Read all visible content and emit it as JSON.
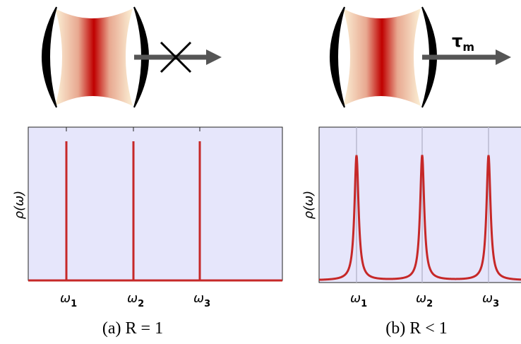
{
  "panels": [
    {
      "arrow_label": null,
      "y_label": "ρ(ω)",
      "x_labels": [
        {
          "symbol": "ω",
          "subscript": "1"
        },
        {
          "symbol": "ω",
          "subscript": "2"
        },
        {
          "symbol": "ω",
          "subscript": "3"
        }
      ],
      "caption": "(a) R = 1"
    },
    {
      "arrow_label": {
        "symbol": "τ",
        "subscript": "m"
      },
      "y_label": "ρ(ω)",
      "x_labels": [
        {
          "symbol": "ω",
          "subscript": "1"
        },
        {
          "symbol": "ω",
          "subscript": "2"
        },
        {
          "symbol": "ω",
          "subscript": "3"
        }
      ],
      "caption": "(b) R < 1"
    }
  ]
}
